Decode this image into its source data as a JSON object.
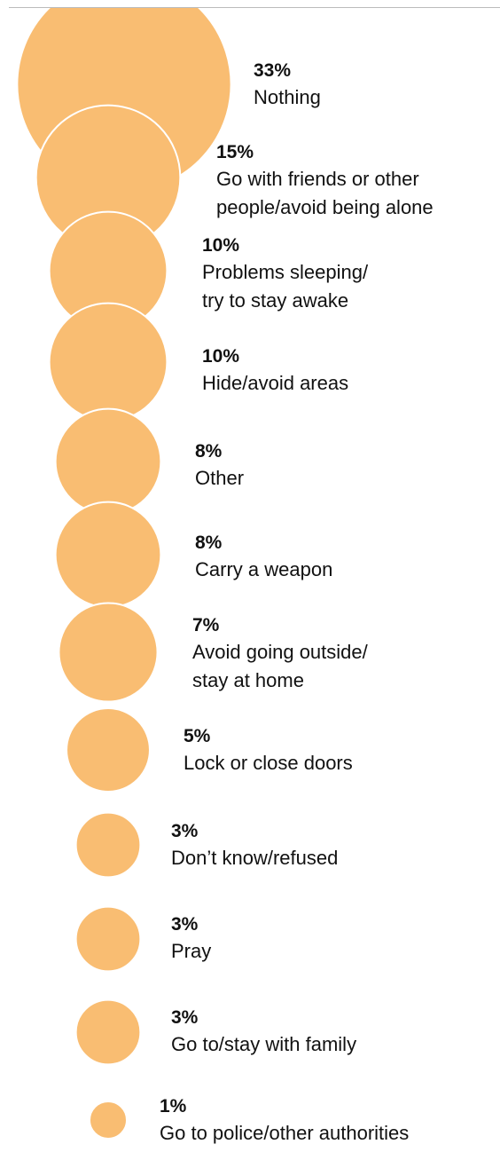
{
  "chart_data": {
    "type": "bubble",
    "categories": [
      "Nothing",
      "Go with friends or other\npeople/avoid being alone",
      "Problems sleeping/\ntry to stay awake",
      "Hide/avoid areas",
      "Other",
      "Carry a weapon",
      "Avoid going outside/\nstay at home",
      "Lock or close doors",
      "Don’t know/refused",
      "Pray",
      "Go to/stay with family",
      "Go to police/other authorities"
    ],
    "values": [
      33,
      15,
      10,
      10,
      8,
      8,
      7,
      5,
      3,
      3,
      3,
      1
    ],
    "value_labels": [
      "33%",
      "15%",
      "10%",
      "10%",
      "8%",
      "8%",
      "7%",
      "5%",
      "3%",
      "3%",
      "3%",
      "1%"
    ],
    "color": "#f9bd72"
  }
}
